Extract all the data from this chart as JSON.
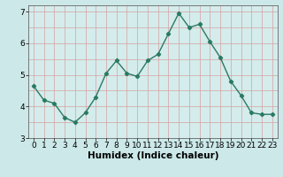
{
  "x": [
    0,
    1,
    2,
    3,
    4,
    5,
    6,
    7,
    8,
    9,
    10,
    11,
    12,
    13,
    14,
    15,
    16,
    17,
    18,
    19,
    20,
    21,
    22,
    23
  ],
  "y": [
    4.65,
    4.2,
    4.1,
    3.65,
    3.5,
    3.8,
    4.3,
    5.05,
    5.45,
    5.05,
    4.95,
    5.45,
    5.65,
    6.3,
    6.95,
    6.5,
    6.6,
    6.05,
    5.55,
    4.8,
    4.35,
    3.8,
    3.75,
    3.75
  ],
  "line_color": "#2a7a62",
  "marker": "D",
  "marker_size": 2.2,
  "linewidth": 1.0,
  "xlabel": "Humidex (Indice chaleur)",
  "xlim": [
    -0.5,
    23.5
  ],
  "ylim": [
    3.0,
    7.2
  ],
  "yticks": [
    3,
    4,
    5,
    6,
    7
  ],
  "xtick_labels": [
    "0",
    "1",
    "2",
    "3",
    "4",
    "5",
    "6",
    "7",
    "8",
    "9",
    "10",
    "11",
    "12",
    "13",
    "14",
    "15",
    "16",
    "17",
    "18",
    "19",
    "20",
    "21",
    "22",
    "23"
  ],
  "bg_color": "#cce8e8",
  "grid_color_v": "#d8a0a0",
  "grid_color_h": "#d8a0a0",
  "plot_bg_color": "#d4ecec",
  "xlabel_fontsize": 7.5,
  "tick_fontsize": 6.5
}
